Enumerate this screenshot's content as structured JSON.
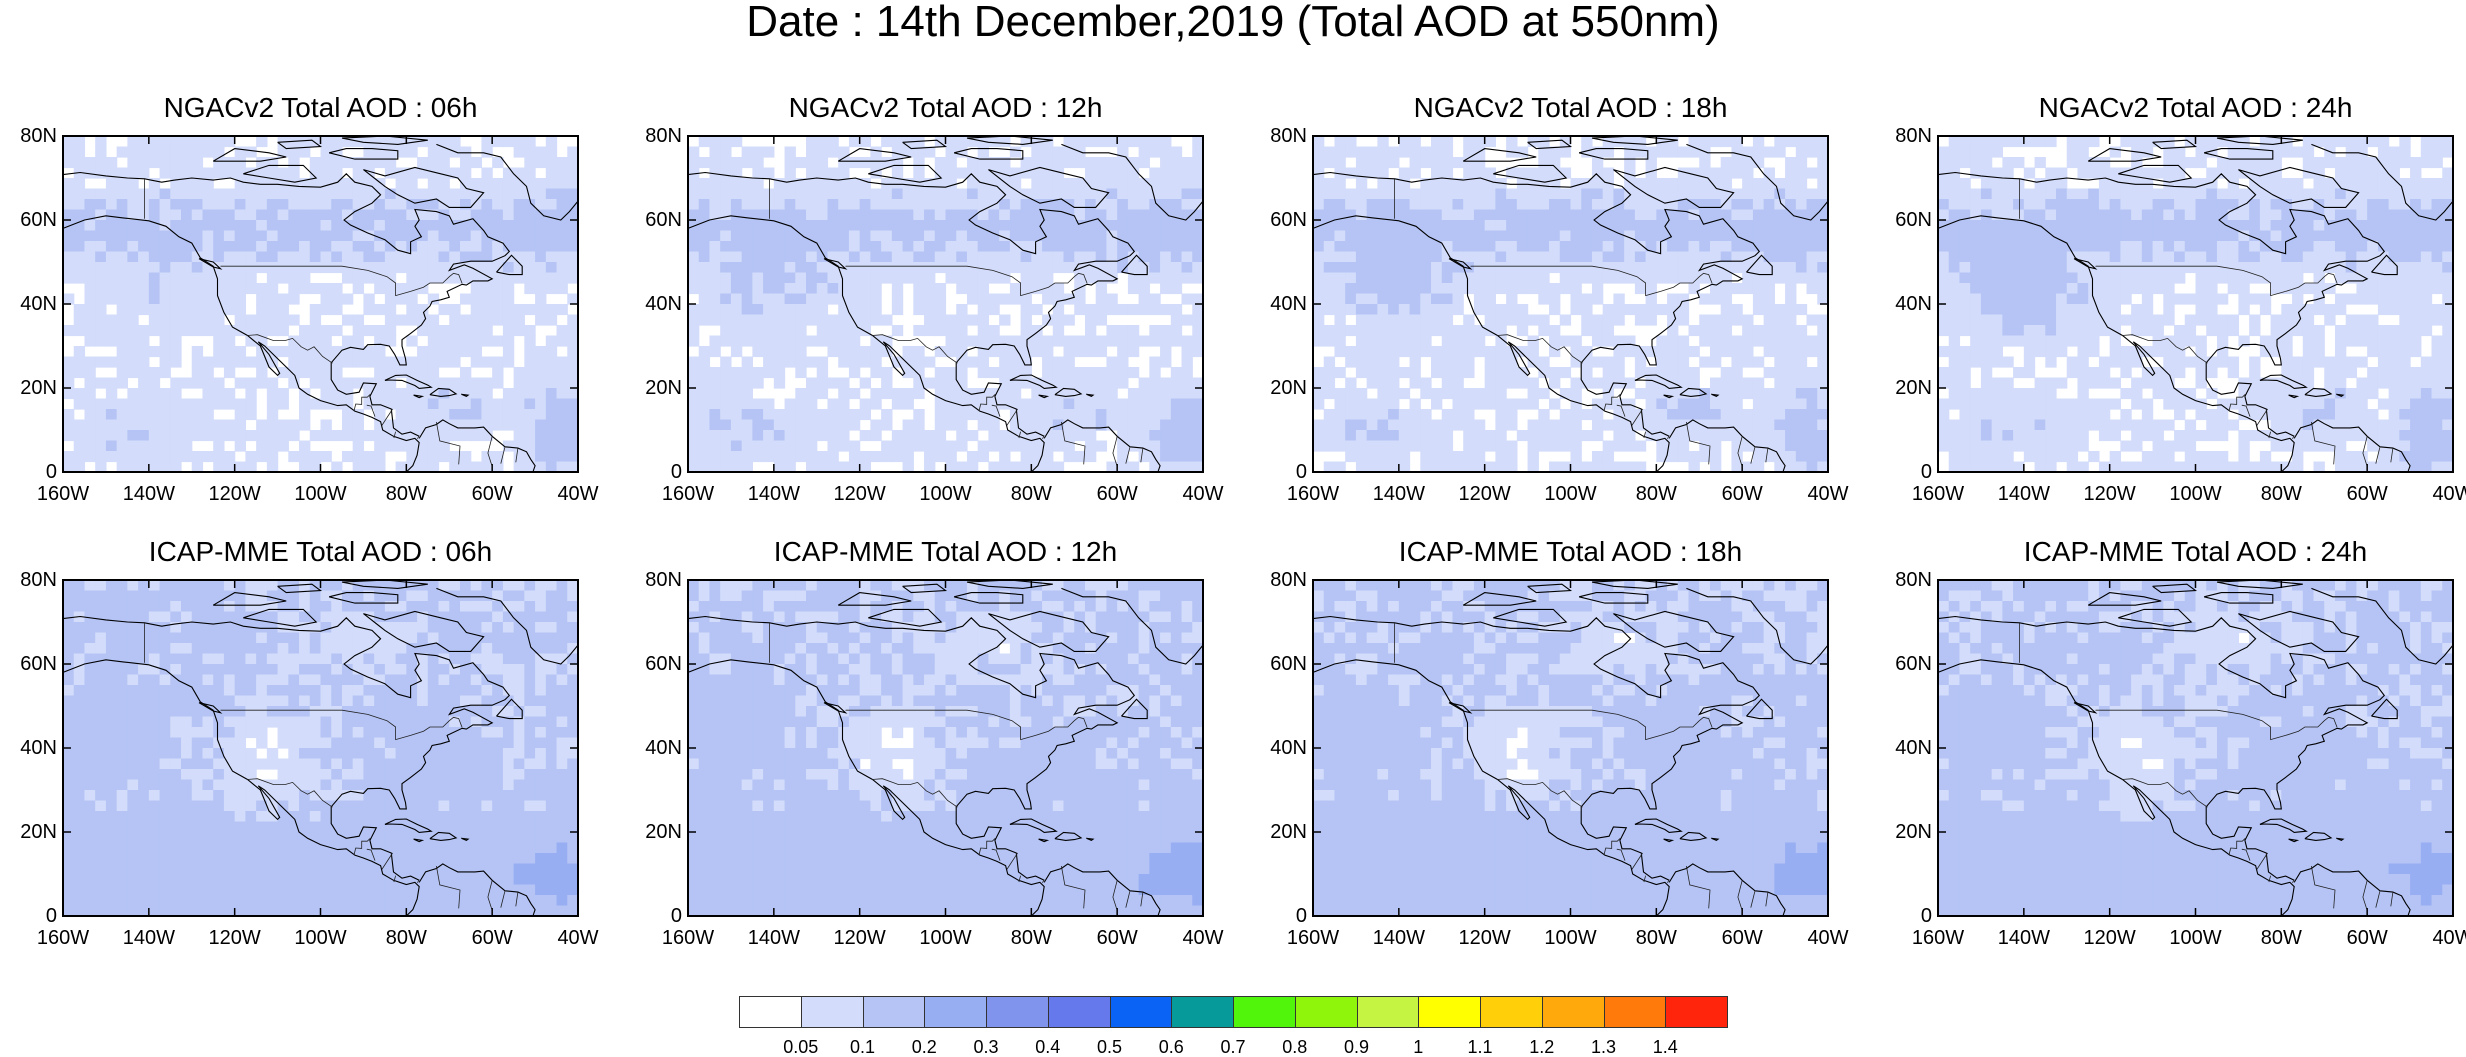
{
  "figure": {
    "title": "Date : 14th December,2019 (Total AOD at 550nm)"
  },
  "panels": [
    {
      "title": "NGACv2 Total AOD : 06h",
      "model": "ngac",
      "hour": 6
    },
    {
      "title": "NGACv2 Total AOD : 12h",
      "model": "ngac",
      "hour": 12
    },
    {
      "title": "NGACv2 Total AOD : 18h",
      "model": "ngac",
      "hour": 18
    },
    {
      "title": "NGACv2 Total AOD : 24h",
      "model": "ngac",
      "hour": 24
    },
    {
      "title": "ICAP-MME Total AOD : 06h",
      "model": "icap",
      "hour": 6
    },
    {
      "title": "ICAP-MME Total AOD : 12h",
      "model": "icap",
      "hour": 12
    },
    {
      "title": "ICAP-MME Total AOD : 18h",
      "model": "icap",
      "hour": 18
    },
    {
      "title": "ICAP-MME Total AOD : 24h",
      "model": "icap",
      "hour": 24
    }
  ],
  "axes": {
    "lat_labels": [
      "80N",
      "60N",
      "40N",
      "20N",
      "0"
    ],
    "lat_values": [
      80,
      60,
      40,
      20,
      0
    ],
    "lon_labels": [
      "160W",
      "140W",
      "120W",
      "100W",
      "80W",
      "60W",
      "40W"
    ],
    "lon_values": [
      -160,
      -140,
      -120,
      -100,
      -80,
      -60,
      -40
    ],
    "lat_range": [
      0,
      80
    ],
    "lon_range": [
      -160,
      -40
    ]
  },
  "colorbar": {
    "labels": [
      "0.05",
      "0.1",
      "0.2",
      "0.3",
      "0.4",
      "0.5",
      "0.6",
      "0.7",
      "0.8",
      "0.9",
      "1",
      "1.1",
      "1.2",
      "1.3",
      "1.4"
    ],
    "colors": [
      "#ffffff",
      "#d3dcfa",
      "#b5c4f5",
      "#98aef2",
      "#8094ee",
      "#6679ec",
      "#0a63f5",
      "#079a9a",
      "#50f50b",
      "#8ef50b",
      "#c5f542",
      "#ffff00",
      "#ffcf0a",
      "#ffa90d",
      "#ff7a0a",
      "#ff250d"
    ]
  }
}
